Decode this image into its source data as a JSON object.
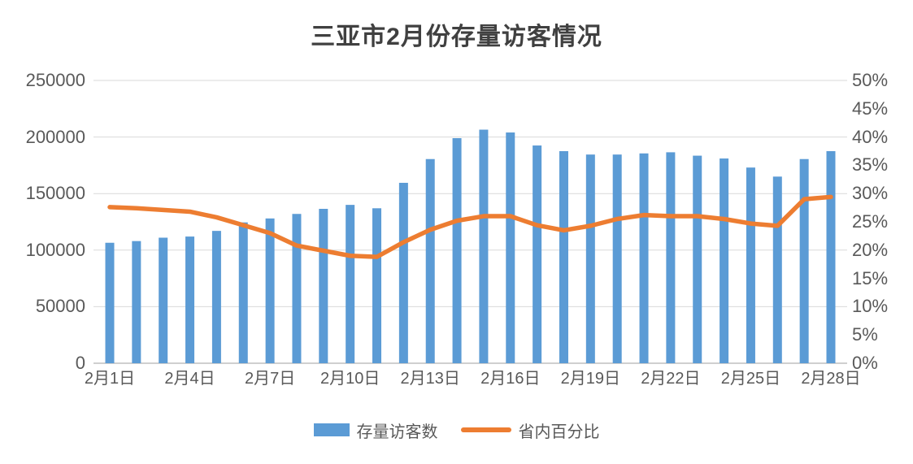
{
  "colors": {
    "bar": "#5B9BD5",
    "line": "#ED7D31",
    "grid": "#D9D9D9",
    "axis_line": "#BFBFBF",
    "axis_text": "#595959",
    "title_text": "#404040",
    "background": "#FFFFFF"
  },
  "chart_data": {
    "type": "combo-bar-line",
    "title": "三亚市2月份存量访客情况",
    "grid": "horizontal",
    "legend_position": "bottom",
    "categories": [
      "2月1日",
      "2月2日",
      "2月3日",
      "2月4日",
      "2月5日",
      "2月6日",
      "2月7日",
      "2月8日",
      "2月9日",
      "2月10日",
      "2月11日",
      "2月12日",
      "2月13日",
      "2月14日",
      "2月15日",
      "2月16日",
      "2月17日",
      "2月18日",
      "2月19日",
      "2月20日",
      "2月21日",
      "2月22日",
      "2月23日",
      "2月24日",
      "2月25日",
      "2月26日",
      "2月27日",
      "2月28日"
    ],
    "series": [
      {
        "name": "存量访客数",
        "type": "bar",
        "axis": "left",
        "color": "#5B9BD5",
        "values": [
          106500,
          108000,
          111000,
          112000,
          117000,
          124500,
          128000,
          132000,
          136500,
          140000,
          137000,
          159500,
          180500,
          199000,
          206500,
          204000,
          192500,
          187500,
          184500,
          184500,
          185500,
          186500,
          183500,
          181000,
          173000,
          165000,
          180500,
          187500
        ]
      },
      {
        "name": "省内百分比",
        "type": "line",
        "axis": "right",
        "color": "#ED7D31",
        "values_percent": [
          27.6,
          27.4,
          27.1,
          26.8,
          25.8,
          24.4,
          23.0,
          20.8,
          19.9,
          19.0,
          18.8,
          21.4,
          23.6,
          25.2,
          26.0,
          26.0,
          24.4,
          23.5,
          24.3,
          25.5,
          26.2,
          26.0,
          26.0,
          25.5,
          24.7,
          24.3,
          29.0,
          29.4
        ]
      }
    ],
    "left_axis": {
      "min": 0,
      "max": 250000,
      "step": 50000,
      "tick_labels": [
        "0",
        "50000",
        "100000",
        "150000",
        "200000",
        "250000"
      ]
    },
    "right_axis": {
      "min": 0,
      "max": 50,
      "step": 5,
      "tick_labels": [
        "0%",
        "5%",
        "10%",
        "15%",
        "20%",
        "25%",
        "30%",
        "35%",
        "40%",
        "45%",
        "50%"
      ]
    },
    "x_tick_labels": [
      "2月1日",
      "2月4日",
      "2月7日",
      "2月10日",
      "2月13日",
      "2月16日",
      "2月19日",
      "2月22日",
      "2月25日",
      "2月28日"
    ],
    "x_tick_indices": [
      0,
      3,
      6,
      9,
      12,
      15,
      18,
      21,
      24,
      27
    ]
  }
}
